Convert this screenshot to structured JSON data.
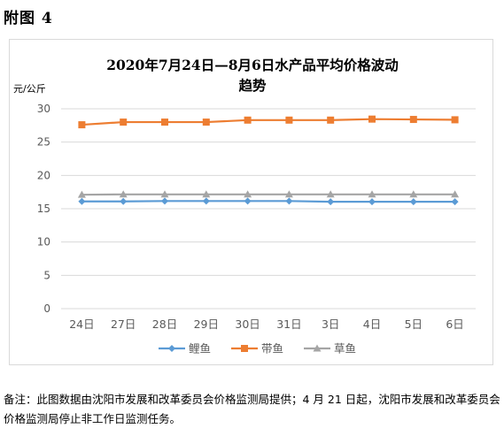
{
  "figure_label": "附图 4",
  "note": "备注：此图数据由沈阳市发展和改革委员会价格监测局提供；4 月 21 日起，沈阳市发展和改革委员会价格监测局停止非工作日监测任务。",
  "chart_data": {
    "type": "line",
    "title_line1": "2020年7月24日—8月6日水产品平均价格波动",
    "title_line2": "趋势",
    "ylabel": "元/公斤",
    "ylim": [
      0,
      30
    ],
    "yticks": [
      0,
      5,
      10,
      15,
      20,
      25,
      30
    ],
    "grid": true,
    "legend_position": "bottom",
    "categories": [
      "24日",
      "27日",
      "28日",
      "29日",
      "30日",
      "31日",
      "3日",
      "4日",
      "5日",
      "6日"
    ],
    "series": [
      {
        "name": "鲤鱼",
        "color": "#5b9bd5",
        "marker": "diamond",
        "values": [
          16.1,
          16.1,
          16.15,
          16.15,
          16.15,
          16.15,
          16.05,
          16.05,
          16.05,
          16.05
        ]
      },
      {
        "name": "带鱼",
        "color": "#ed7d31",
        "marker": "square",
        "values": [
          27.6,
          28.0,
          28.0,
          28.0,
          28.3,
          28.3,
          28.3,
          28.45,
          28.4,
          28.35
        ]
      },
      {
        "name": "草鱼",
        "color": "#a5a5a5",
        "marker": "triangle",
        "values": [
          17.1,
          17.15,
          17.15,
          17.15,
          17.15,
          17.15,
          17.15,
          17.15,
          17.15,
          17.15
        ]
      }
    ]
  }
}
